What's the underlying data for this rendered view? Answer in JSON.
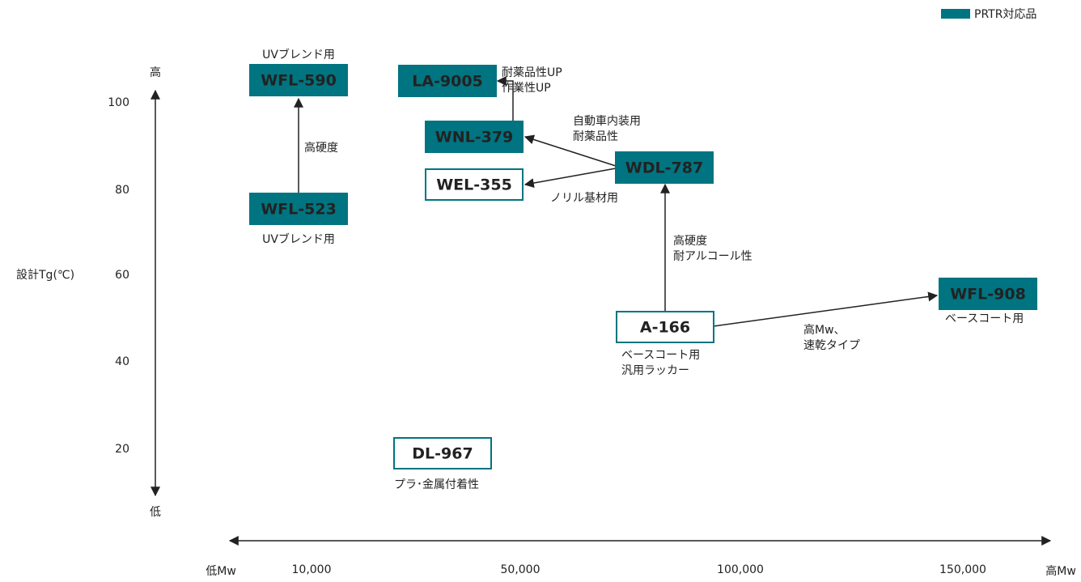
{
  "legend": "PRTR対応品",
  "y_axis": {
    "label": "設計Tg(℃)",
    "high": "高",
    "low": "低",
    "ticks": [
      "100",
      "80",
      "60",
      "40",
      "20"
    ]
  },
  "x_axis": {
    "low": "低Mw",
    "high": "高Mw",
    "ticks": [
      "10,000",
      "50,000",
      "100,000",
      "150,000"
    ]
  },
  "nodes": [
    {
      "label": "WFL-590",
      "prtr": true,
      "note": [
        "UVブレンド用"
      ]
    },
    {
      "label": "LA-9005",
      "prtr": true,
      "note": [
        "耐薬品性UP",
        "作業性UP"
      ]
    },
    {
      "label": "WNL-379",
      "prtr": true,
      "note": []
    },
    {
      "label": "WEL-355",
      "prtr": false,
      "note": [
        "ノリル基材用"
      ]
    },
    {
      "label": "WDL-787",
      "prtr": true,
      "note": [
        "自動車内装用",
        "耐薬品性"
      ]
    },
    {
      "label": "WFL-523",
      "prtr": true,
      "note": [
        "UVブレンド用"
      ]
    },
    {
      "label": "A-166",
      "prtr": false,
      "note": [
        "ベースコート用",
        "汎用ラッカー"
      ]
    },
    {
      "label": "WFL-908",
      "prtr": true,
      "note": [
        "ベースコート用"
      ]
    },
    {
      "label": "DL-967",
      "prtr": false,
      "note": [
        "プラ･金属付着性"
      ]
    }
  ],
  "edges": [
    {
      "label": [
        "高硬度"
      ]
    },
    {
      "label": [
        "高硬度",
        "耐アルコール性"
      ]
    },
    {
      "label": [
        "高Mw、",
        "速乾タイプ"
      ]
    }
  ]
}
